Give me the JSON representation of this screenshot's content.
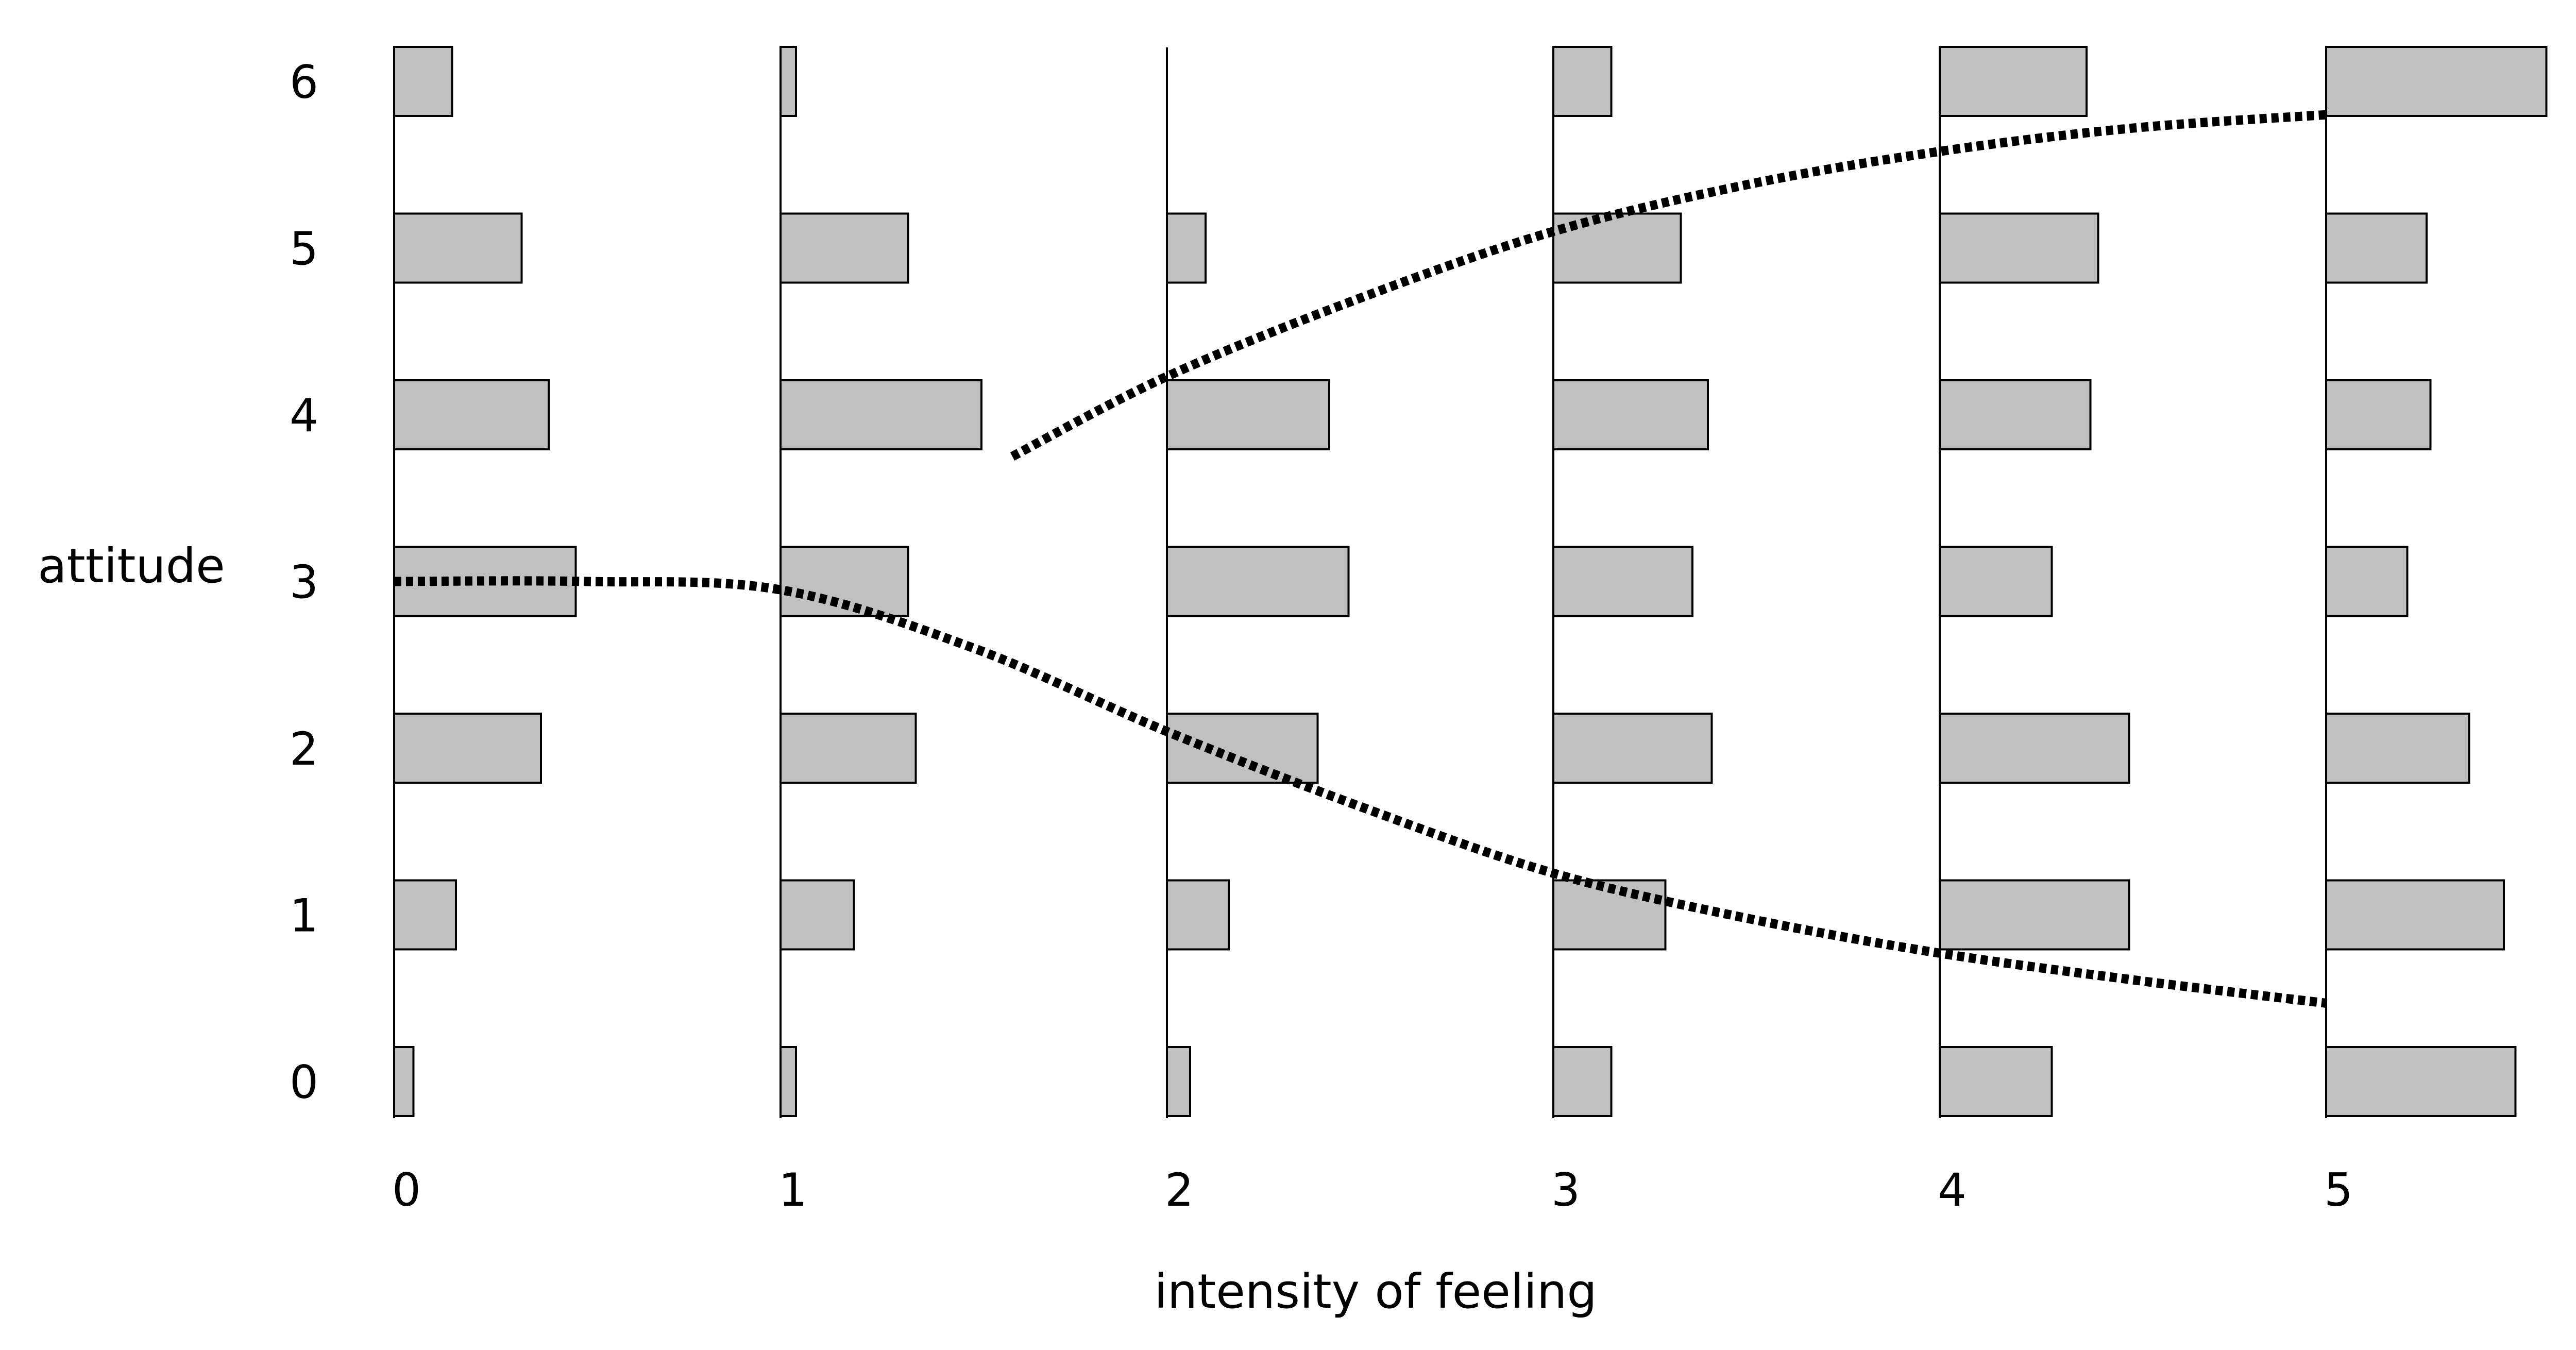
{
  "chart_data": {
    "type": "bar",
    "xlabel": "intensity of feeling",
    "ylabel": "attitude",
    "x_ticks": [
      0,
      1,
      2,
      3,
      4,
      5
    ],
    "y_ticks": [
      0,
      1,
      2,
      3,
      4,
      5,
      6
    ],
    "xlim": [
      0,
      5
    ],
    "ylim": [
      0,
      6
    ],
    "orientation": "horizontal bars grouped per intensity level",
    "groups": [
      {
        "intensity": 0,
        "attitude_counts": [
          0.05,
          0.16,
          0.38,
          0.47,
          0.4,
          0.33,
          0.15
        ]
      },
      {
        "intensity": 1,
        "attitude_counts": [
          0.04,
          0.19,
          0.35,
          0.33,
          0.52,
          0.33,
          0.04
        ]
      },
      {
        "intensity": 2,
        "attitude_counts": [
          0.06,
          0.16,
          0.39,
          0.47,
          0.42,
          0.1,
          0.0
        ]
      },
      {
        "intensity": 3,
        "attitude_counts": [
          0.15,
          0.29,
          0.41,
          0.36,
          0.4,
          0.33,
          0.15
        ]
      },
      {
        "intensity": 4,
        "attitude_counts": [
          0.29,
          0.49,
          0.49,
          0.29,
          0.39,
          0.41,
          0.38
        ]
      },
      {
        "intensity": 5,
        "attitude_counts": [
          0.49,
          0.46,
          0.37,
          0.21,
          0.27,
          0.26,
          0.57
        ]
      }
    ],
    "trend_lines": [
      {
        "style": "dotted",
        "points": [
          [
            0.0,
            3.0
          ],
          [
            0.5,
            3.0
          ],
          [
            1.0,
            2.95
          ],
          [
            1.5,
            2.6
          ],
          [
            2.0,
            2.1
          ],
          [
            2.5,
            1.65
          ],
          [
            3.0,
            1.25
          ],
          [
            3.5,
            0.98
          ],
          [
            4.0,
            0.77
          ],
          [
            4.5,
            0.61
          ],
          [
            5.0,
            0.47
          ]
        ]
      },
      {
        "style": "dotted",
        "points": [
          [
            1.6,
            3.75
          ],
          [
            2.0,
            4.23
          ],
          [
            2.5,
            4.7
          ],
          [
            3.0,
            5.1
          ],
          [
            3.5,
            5.38
          ],
          [
            4.0,
            5.58
          ],
          [
            4.5,
            5.72
          ],
          [
            5.0,
            5.8
          ]
        ]
      }
    ]
  }
}
